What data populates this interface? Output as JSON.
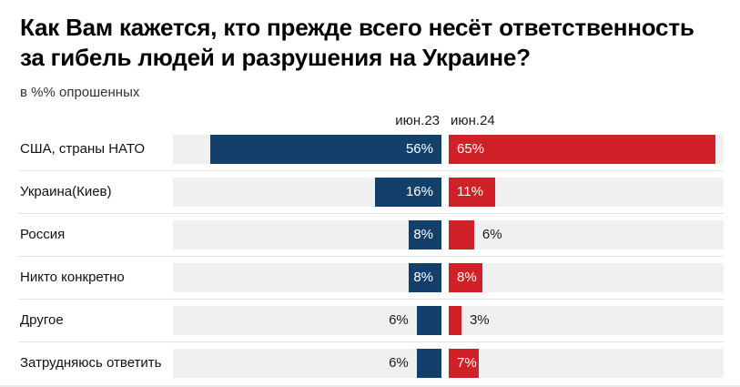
{
  "title": "Как Вам кажется, кто прежде всего несёт ответственность за гибель людей и разрушения на Украине?",
  "subtitle": "в %% опрошенных",
  "chart_data": {
    "type": "bar",
    "orientation": "horizontal",
    "title": "Как Вам кажется, кто прежде всего несёт ответственность за гибель людей и разрушения на Украине?",
    "subtitle": "в %% опрошенных",
    "value_suffix": "%",
    "axis_max": 65,
    "inside_label_min_value": 7,
    "grid": false,
    "legend_position": "column-headers-top",
    "categories": [
      "США, страны НАТО",
      "Украина(Киев)",
      "Россия",
      "Никто конкретно",
      "Другое",
      "Затрудняюсь ответить"
    ],
    "series": [
      {
        "name": "июн.23",
        "color": "#13406b",
        "values": [
          56,
          16,
          8,
          8,
          6,
          6
        ]
      },
      {
        "name": "июн.24",
        "color": "#cf2127",
        "values": [
          65,
          11,
          6,
          8,
          3,
          7
        ]
      }
    ],
    "track_color": "#f0f0f0",
    "inside_label_color": "#ffffff",
    "outside_label_color": "#1a1a1a"
  }
}
